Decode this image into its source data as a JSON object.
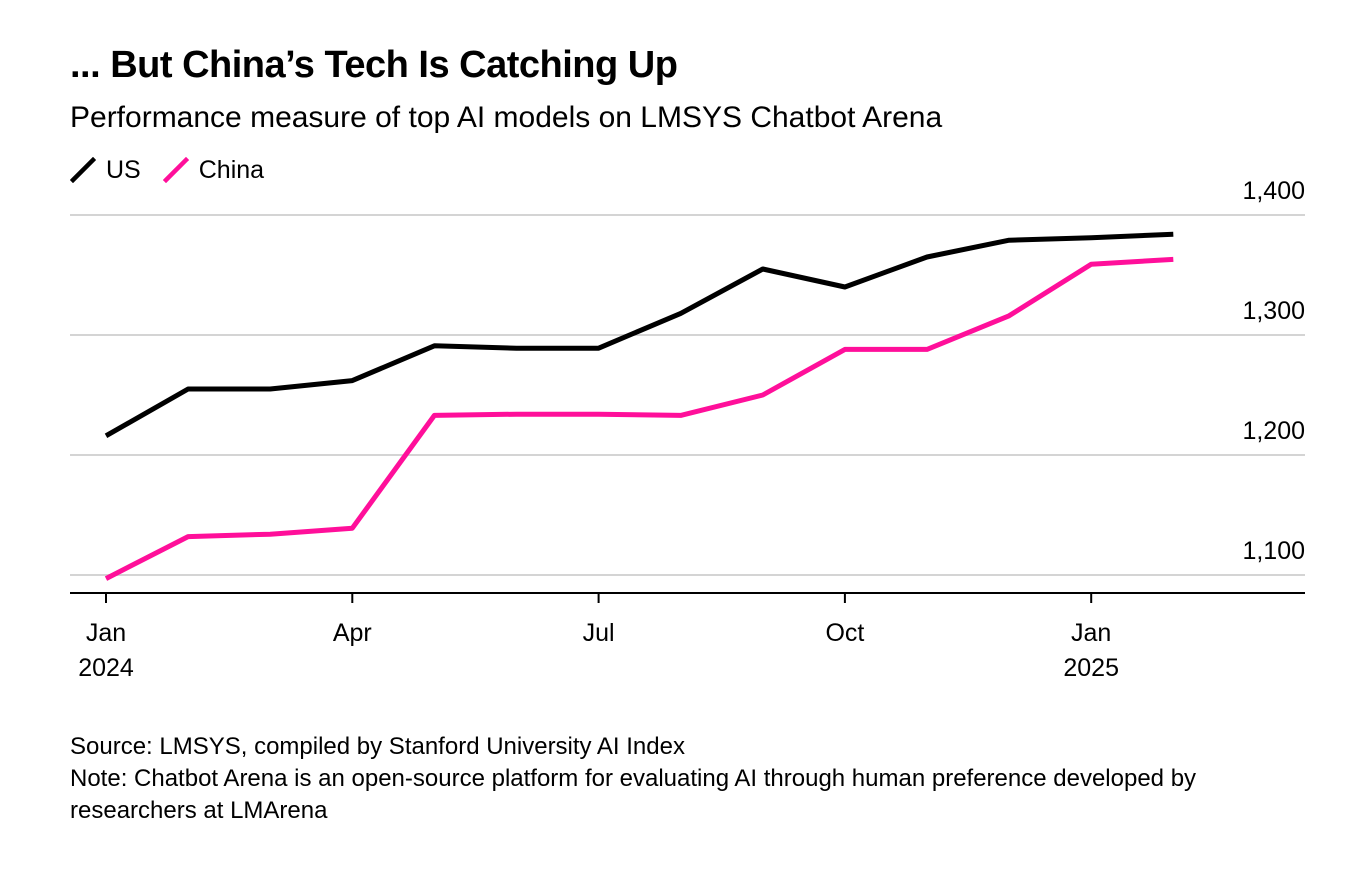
{
  "header": {
    "title": "... But China’s Tech Is Catching Up",
    "subtitle": "Performance measure of top AI models on LMSYS Chatbot Arena"
  },
  "legend": [
    {
      "label": "US",
      "color": "#000000"
    },
    {
      "label": "China",
      "color": "#ff0f9a"
    }
  ],
  "chart_data": {
    "type": "line",
    "title": "... But China’s Tech Is Catching Up",
    "subtitle": "Performance measure of top AI models on LMSYS Chatbot Arena",
    "x": [
      "2024-01",
      "2024-02",
      "2024-03",
      "2024-04",
      "2024-05",
      "2024-06",
      "2024-07",
      "2024-08",
      "2024-09",
      "2024-10",
      "2024-11",
      "2024-12",
      "2025-01",
      "2025-02"
    ],
    "x_ticks": [
      {
        "index": 0,
        "label": "Jan",
        "year": "2024"
      },
      {
        "index": 3,
        "label": "Apr",
        "year": ""
      },
      {
        "index": 6,
        "label": "Jul",
        "year": ""
      },
      {
        "index": 9,
        "label": "Oct",
        "year": ""
      },
      {
        "index": 12,
        "label": "Jan",
        "year": "2025"
      }
    ],
    "y_ticks": [
      {
        "value": 1100,
        "label": "1,100"
      },
      {
        "value": 1200,
        "label": "1,200"
      },
      {
        "value": 1300,
        "label": "1,300"
      },
      {
        "value": 1400,
        "label": "1,400"
      }
    ],
    "ylim": [
      1085,
      1400
    ],
    "xlabel": "",
    "ylabel": "",
    "grid": true,
    "series": [
      {
        "name": "US",
        "color": "#000000",
        "values": [
          1216,
          1255,
          1255,
          1262,
          1291,
          1289,
          1289,
          1318,
          1355,
          1340,
          1365,
          1379,
          1381,
          1384
        ]
      },
      {
        "name": "China",
        "color": "#ff0f9a",
        "values": [
          1097,
          1132,
          1134,
          1139,
          1233,
          1234,
          1234,
          1233,
          1250,
          1288,
          1288,
          1316,
          1359,
          1363
        ]
      }
    ]
  },
  "footer": {
    "source": "Source: LMSYS, compiled by Stanford University AI Index",
    "note": "Note: Chatbot Arena is an open-source platform for evaluating AI through human preference developed by researchers at LMArena"
  }
}
